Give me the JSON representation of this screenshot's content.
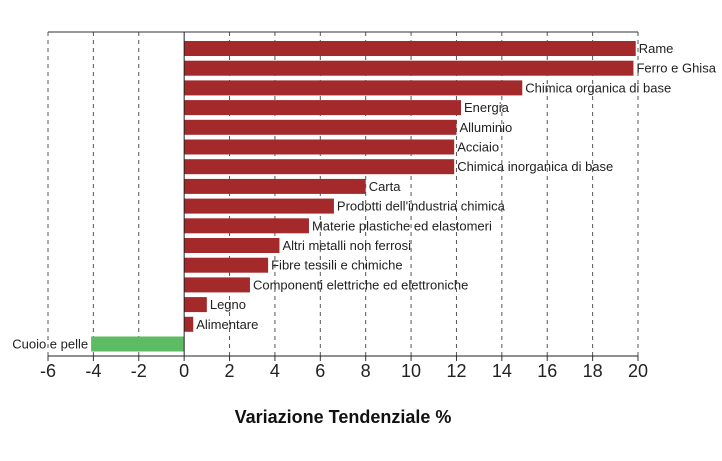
{
  "chart_data": {
    "type": "bar",
    "orientation": "horizontal",
    "title": "",
    "xlabel": "Variazione Tendenziale %",
    "ylabel": "",
    "xlim": [
      -6,
      20
    ],
    "xticks": [
      -6,
      -4,
      -2,
      0,
      2,
      4,
      6,
      8,
      10,
      12,
      14,
      16,
      18,
      20
    ],
    "grid": "vertical dashed",
    "legend": "none",
    "colors": {
      "positive": "#A4292B",
      "negative": "#5DBB63"
    },
    "categories": [
      "Rame",
      "Ferro e Ghisa",
      "Chimica organica di base",
      "Energia",
      "Alluminio",
      "Acciaio",
      "Chimica inorganica di base",
      "Carta",
      "Prodotti dell'industria chimica",
      "Materie plastiche ed elastomeri",
      "Altri metalli non ferrosi",
      "Fibre tessili e chimiche",
      "Componenti elettriche ed elettroniche",
      "Legno",
      "Alimentare",
      "Cuoio e pelle"
    ],
    "values": [
      19.9,
      19.8,
      14.9,
      12.2,
      12.0,
      11.9,
      11.9,
      8.0,
      6.6,
      5.5,
      4.2,
      3.7,
      2.9,
      1.0,
      0.4,
      -4.1
    ]
  }
}
